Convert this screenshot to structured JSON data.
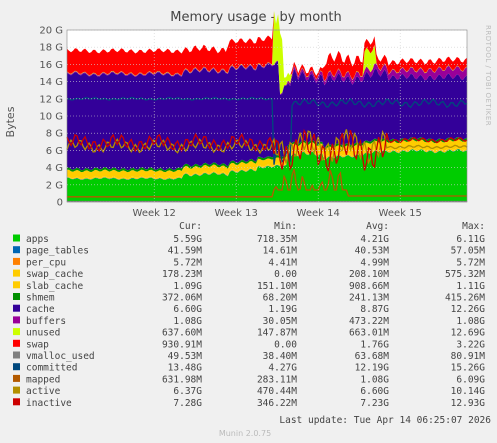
{
  "chart_data": {
    "type": "area",
    "title": "Memory usage - by month",
    "ylabel": "Bytes",
    "side_label": "RRDTOOL / TOBI OETIKER",
    "ylim": [
      0,
      20
    ],
    "y_unit": "G",
    "y_ticks": [
      0,
      2,
      4,
      6,
      8,
      10,
      12,
      14,
      16,
      18,
      20
    ],
    "y_tick_labels": [
      "0",
      "2 G",
      "4 G",
      "6 G",
      "8 G",
      "10 G",
      "12 G",
      "14 G",
      "16 G",
      "18 G",
      "20 G"
    ],
    "x_ticks": [
      {
        "label": "Week 12",
        "pos": 0.218
      },
      {
        "label": "Week 13",
        "pos": 0.423
      },
      {
        "label": "Week 14",
        "pos": 0.628
      },
      {
        "label": "Week 15",
        "pos": 0.833
      }
    ],
    "legend_headers": [
      "Cur:",
      "Min:",
      "Avg:",
      "Max:"
    ],
    "legend": [
      {
        "name": "apps",
        "color": "#00cc00",
        "cur": "5.59G",
        "min": "718.35M",
        "avg": "4.21G",
        "max": "6.11G"
      },
      {
        "name": "page_tables",
        "color": "#0066b3",
        "cur": "41.59M",
        "min": "14.61M",
        "avg": "40.53M",
        "max": "57.05M"
      },
      {
        "name": "per_cpu",
        "color": "#ff8000",
        "cur": "5.72M",
        "min": "4.41M",
        "avg": "4.99M",
        "max": "5.72M"
      },
      {
        "name": "swap_cache",
        "color": "#ffcc00",
        "cur": "178.23M",
        "min": "0.00",
        "avg": "208.10M",
        "max": "575.32M"
      },
      {
        "name": "slab_cache",
        "color": "#ffcc00",
        "cur": "1.09G",
        "min": "151.10M",
        "avg": "908.66M",
        "max": "1.11G"
      },
      {
        "name": "shmem",
        "color": "#008f00",
        "cur": "372.06M",
        "min": "68.20M",
        "avg": "241.13M",
        "max": "415.26M"
      },
      {
        "name": "cache",
        "color": "#330099",
        "cur": "6.60G",
        "min": "1.19G",
        "avg": "8.87G",
        "max": "12.26G"
      },
      {
        "name": "buffers",
        "color": "#990099",
        "cur": "1.08G",
        "min": "30.05M",
        "avg": "473.22M",
        "max": "1.08G"
      },
      {
        "name": "unused",
        "color": "#ccff00",
        "cur": "637.60M",
        "min": "147.87M",
        "avg": "663.01M",
        "max": "12.69G"
      },
      {
        "name": "swap",
        "color": "#ff0000",
        "cur": "930.91M",
        "min": "0.00",
        "avg": "1.76G",
        "max": "3.22G"
      },
      {
        "name": "vmalloc_used",
        "color": "#808080",
        "cur": "49.53M",
        "min": "38.40M",
        "avg": "63.68M",
        "max": "80.91M"
      },
      {
        "name": "committed",
        "color": "#00487d",
        "cur": "13.48G",
        "min": "4.27G",
        "avg": "12.19G",
        "max": "15.26G"
      },
      {
        "name": "mapped",
        "color": "#b35a00",
        "cur": "631.98M",
        "min": "283.11M",
        "avg": "1.08G",
        "max": "6.09G"
      },
      {
        "name": "active",
        "color": "#b38f00",
        "cur": "6.37G",
        "min": "470.44M",
        "avg": "6.60G",
        "max": "10.14G"
      },
      {
        "name": "inactive",
        "color": "#cc0000",
        "cur": "7.28G",
        "min": "346.22M",
        "avg": "7.23G",
        "max": "12.93G"
      }
    ],
    "grid": true,
    "last_update": "Last update:  Tue Apr 14 06:25:07 2026",
    "footer": "Munin 2.0.75"
  }
}
